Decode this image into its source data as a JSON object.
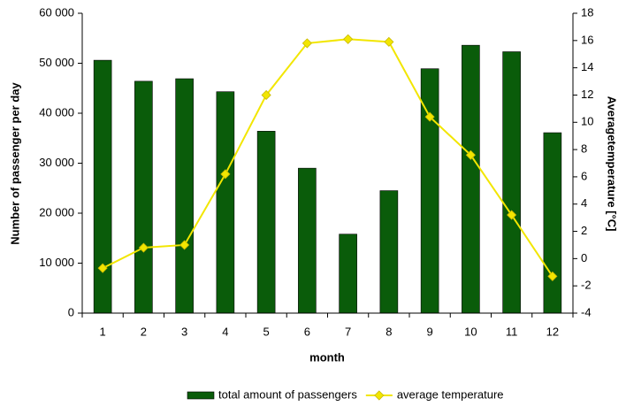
{
  "chart_data": {
    "type": "bar-line",
    "x_label": "month",
    "y_label": "Number of passenger per day",
    "y2_label": "Averagetemperature [°C]",
    "categories": [
      "1",
      "2",
      "3",
      "4",
      "5",
      "6",
      "7",
      "8",
      "9",
      "10",
      "11",
      "12"
    ],
    "series": [
      {
        "name": "total amount of passengers",
        "type": "bar",
        "color": "#0a5c0a",
        "values": [
          50600,
          46400,
          46900,
          44300,
          36400,
          29000,
          15800,
          24500,
          48900,
          53600,
          52300,
          36100
        ]
      },
      {
        "name": "average temperature",
        "type": "line",
        "color": "#f2e600",
        "axis": "y2",
        "values": [
          -0.7,
          0.8,
          1.0,
          6.2,
          12.0,
          15.8,
          16.1,
          15.9,
          10.4,
          7.6,
          3.2,
          -1.3
        ]
      }
    ],
    "ylim": [
      0,
      60000
    ],
    "yticks": [
      0,
      {
        "value": 10000,
        "label": "10 000"
      },
      {
        "value": 20000,
        "label": "20 000"
      },
      {
        "value": 30000,
        "label": "30 000"
      },
      {
        "value": 40000,
        "label": "40 000"
      },
      {
        "value": 50000,
        "label": "50 000"
      },
      {
        "value": 60000,
        "label": "60 000"
      }
    ],
    "y2lim": [
      -4,
      18
    ],
    "y2ticks": [
      -4,
      -2,
      0,
      2,
      4,
      6,
      8,
      10,
      12,
      14,
      16,
      18
    ],
    "grid": false,
    "legend": "bottom"
  }
}
